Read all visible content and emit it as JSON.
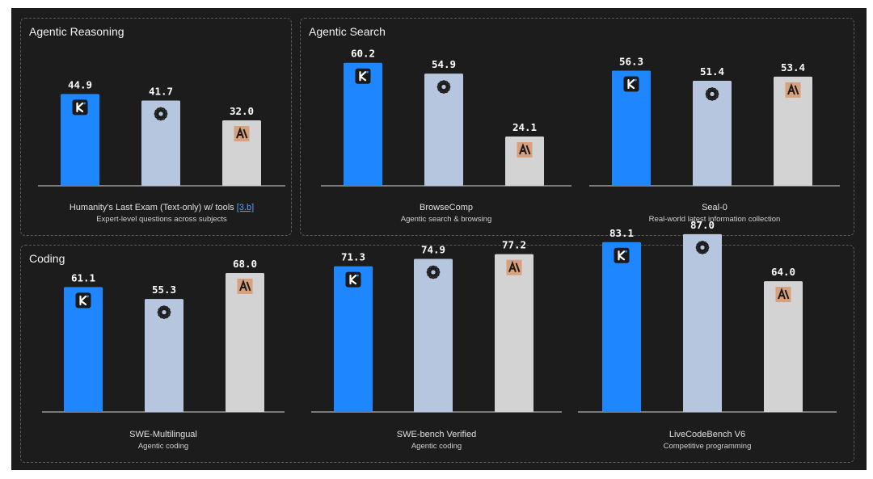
{
  "colors": {
    "kimi": "#1e87ff",
    "openai": "#b7c6df",
    "anthropic": "#d3d3d3",
    "badge_k": "#1a1a1a",
    "badge_a": "#d8a07c",
    "background": "#1c1c1c",
    "text": "#f2f2f2"
  },
  "icons": [
    "kimi-k-logo-icon",
    "openai-logo-icon",
    "anthropic-logo-icon"
  ],
  "sections": [
    {
      "title": "Agentic Reasoning"
    },
    {
      "title": "Agentic Search"
    },
    {
      "title": "Coding"
    }
  ],
  "chart_data": [
    {
      "type": "bar",
      "section": "Agentic Reasoning",
      "xlabel": "Humanity's Last Exam (Text-only) w/ tools",
      "xlabel_ref": "[3.b]",
      "subtitle": "Expert-level questions across subjects",
      "values": [
        44.9,
        41.7,
        32.0
      ],
      "labels": [
        "44.9",
        "41.7",
        "32.0"
      ],
      "ylim": [
        0,
        87
      ]
    },
    {
      "type": "bar",
      "section": "Agentic Search",
      "xlabel": "BrowseComp",
      "subtitle": "Agentic search & browsing",
      "values": [
        60.2,
        54.9,
        24.1
      ],
      "labels": [
        "60.2",
        "54.9",
        "24.1"
      ],
      "ylim": [
        0,
        87
      ]
    },
    {
      "type": "bar",
      "section": "Agentic Search",
      "xlabel": "Seal-0",
      "subtitle": "Real-world latest information collection",
      "values": [
        56.3,
        51.4,
        53.4
      ],
      "labels": [
        "56.3",
        "51.4",
        "53.4"
      ],
      "ylim": [
        0,
        87
      ]
    },
    {
      "type": "bar",
      "section": "Coding",
      "xlabel": "SWE-Multilingual",
      "subtitle": "Agentic coding",
      "values": [
        61.1,
        55.3,
        68.0
      ],
      "labels": [
        "61.1",
        "55.3",
        "68.0"
      ],
      "ylim": [
        0,
        87
      ]
    },
    {
      "type": "bar",
      "section": "Coding",
      "xlabel": "SWE-bench Verified",
      "subtitle": "Agentic coding",
      "values": [
        71.3,
        74.9,
        77.2
      ],
      "labels": [
        "71.3",
        "74.9",
        "77.2"
      ],
      "ylim": [
        0,
        87
      ]
    },
    {
      "type": "bar",
      "section": "Coding",
      "xlabel": "LiveCodeBench V6",
      "subtitle": "Competitive programming",
      "values": [
        83.1,
        87.0,
        64.0
      ],
      "labels": [
        "83.1",
        "87.0",
        "64.0"
      ],
      "ylim": [
        0,
        87
      ]
    }
  ]
}
